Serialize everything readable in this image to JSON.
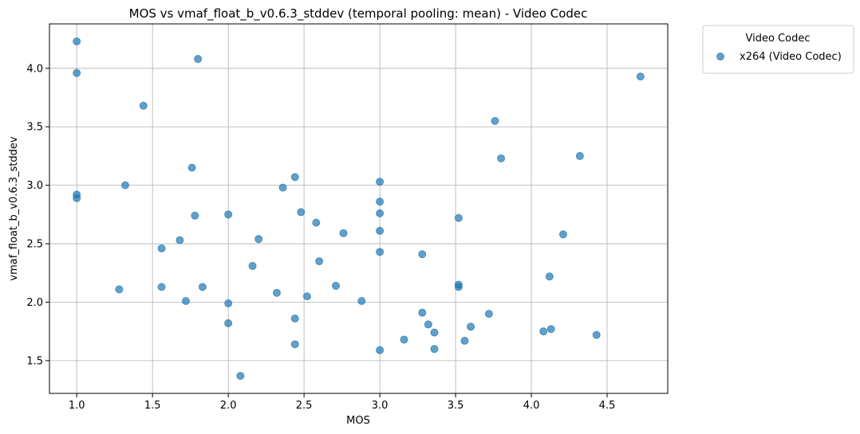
{
  "chart_data": {
    "type": "scatter",
    "title": "MOS vs vmaf_float_b_v0.6.3_stddev (temporal pooling: mean) - Video Codec",
    "xlabel": "MOS",
    "ylabel": "vmaf_float_b_v0.6.3_stddev",
    "xlim": [
      0.82,
      4.9
    ],
    "ylim": [
      1.22,
      4.38
    ],
    "xticks": [
      "1.0",
      "1.5",
      "2.0",
      "2.5",
      "3.0",
      "3.5",
      "4.0",
      "4.5"
    ],
    "yticks": [
      "1.5",
      "2.0",
      "2.5",
      "3.0",
      "3.5",
      "4.0"
    ],
    "grid": true,
    "legend": {
      "title": "Video Codec",
      "placement": "outside-top-right"
    },
    "series": [
      {
        "name": "x264 (Video Codec)",
        "color": "#1f77b4",
        "points": [
          [
            1.0,
            4.23
          ],
          [
            1.0,
            3.96
          ],
          [
            1.0,
            2.92
          ],
          [
            1.0,
            2.89
          ],
          [
            1.28,
            2.11
          ],
          [
            1.32,
            3.0
          ],
          [
            1.44,
            3.68
          ],
          [
            1.56,
            2.46
          ],
          [
            1.56,
            2.13
          ],
          [
            1.68,
            2.53
          ],
          [
            1.72,
            2.01
          ],
          [
            1.76,
            3.15
          ],
          [
            1.78,
            2.74
          ],
          [
            1.8,
            4.08
          ],
          [
            1.83,
            2.13
          ],
          [
            2.0,
            2.75
          ],
          [
            2.0,
            1.99
          ],
          [
            2.0,
            1.82
          ],
          [
            2.08,
            1.37
          ],
          [
            2.16,
            2.31
          ],
          [
            2.2,
            2.54
          ],
          [
            2.32,
            2.08
          ],
          [
            2.36,
            2.98
          ],
          [
            2.44,
            3.07
          ],
          [
            2.44,
            1.86
          ],
          [
            2.44,
            1.64
          ],
          [
            2.48,
            2.77
          ],
          [
            2.52,
            2.05
          ],
          [
            2.58,
            2.68
          ],
          [
            2.6,
            2.35
          ],
          [
            2.71,
            2.14
          ],
          [
            2.76,
            2.59
          ],
          [
            2.88,
            2.01
          ],
          [
            3.0,
            3.03
          ],
          [
            3.0,
            2.86
          ],
          [
            3.0,
            2.76
          ],
          [
            3.0,
            2.61
          ],
          [
            3.0,
            2.43
          ],
          [
            3.0,
            1.59
          ],
          [
            3.16,
            1.68
          ],
          [
            3.28,
            2.41
          ],
          [
            3.28,
            1.91
          ],
          [
            3.32,
            1.81
          ],
          [
            3.36,
            1.74
          ],
          [
            3.36,
            1.6
          ],
          [
            3.52,
            2.72
          ],
          [
            3.52,
            2.15
          ],
          [
            3.52,
            2.13
          ],
          [
            3.56,
            1.67
          ],
          [
            3.6,
            1.79
          ],
          [
            3.72,
            1.9
          ],
          [
            3.76,
            3.55
          ],
          [
            3.8,
            3.23
          ],
          [
            4.08,
            1.75
          ],
          [
            4.12,
            2.22
          ],
          [
            4.13,
            1.77
          ],
          [
            4.21,
            2.58
          ],
          [
            4.32,
            3.25
          ],
          [
            4.43,
            1.72
          ],
          [
            4.72,
            3.93
          ]
        ]
      }
    ]
  }
}
